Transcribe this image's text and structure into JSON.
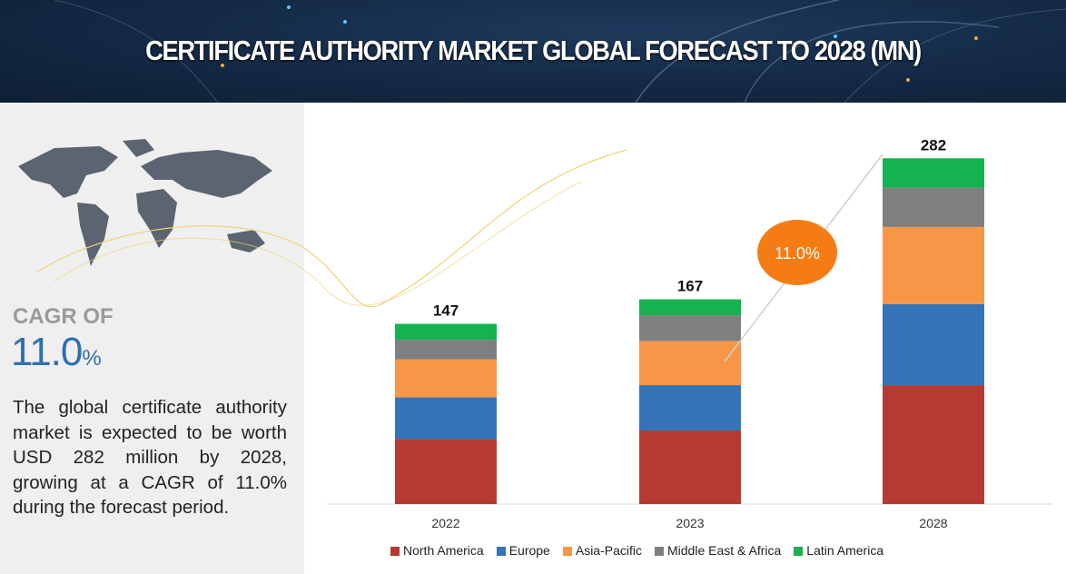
{
  "header": {
    "title": "CERTIFICATE AUTHORITY MARKET GLOBAL FORECAST TO 2028 (MN)"
  },
  "sidebar": {
    "cagr_label": "CAGR OF",
    "cagr_value": "11.0",
    "cagr_unit": "%",
    "description": "The global certificate authority market is expected to be worth USD 282 million by 2028, growing at a CAGR of 11.0% during the forecast period.",
    "map_icon": "world-map-icon"
  },
  "chart_data": {
    "type": "bar",
    "stacked": true,
    "categories": [
      "2022",
      "2023",
      "2028"
    ],
    "totals": [
      "147",
      "167",
      "282"
    ],
    "cagr_badge": "11.0%",
    "series": [
      {
        "name": "North America",
        "color": "#b73a32",
        "values": [
          53,
          60,
          97
        ]
      },
      {
        "name": "Europe",
        "color": "#3574b9",
        "values": [
          34,
          37,
          66
        ]
      },
      {
        "name": "Asia-Pacific",
        "color": "#f79646",
        "values": [
          31,
          36,
          63
        ]
      },
      {
        "name": "Middle East & Africa",
        "color": "#7f7f7f",
        "values": [
          16,
          21,
          32
        ]
      },
      {
        "name": "Latin America",
        "color": "#16b150",
        "values": [
          13,
          13,
          24
        ]
      }
    ],
    "legend": "bottom",
    "grid": false,
    "badge_color": "#f57c14"
  }
}
